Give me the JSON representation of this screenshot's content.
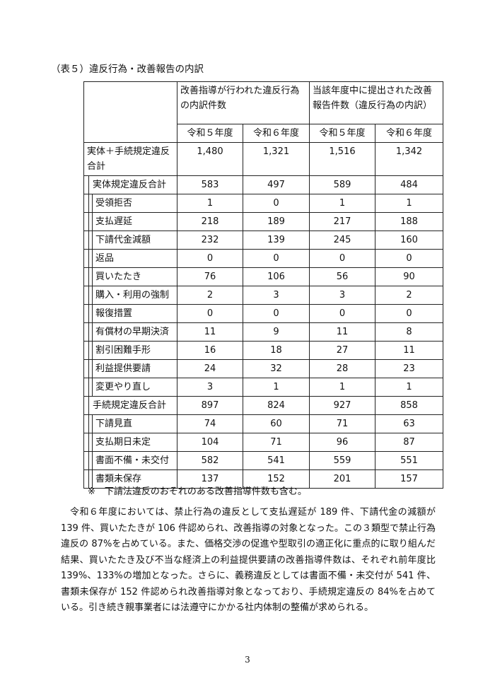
{
  "caption": "（表５）違反行為・改善報告の内訳",
  "table": {
    "group_headers": [
      "改善指導が行われた違反行為の内訳件数",
      "当該年度中に提出された改善報告件数（違反行為の内訳）"
    ],
    "year_headers": [
      "令和５年度",
      "令和６年度",
      "令和５年度",
      "令和６年度"
    ],
    "rows": [
      {
        "label": "実体＋手続規定違反合計",
        "level": 1,
        "values": [
          "1,480",
          "1,321",
          "1,516",
          "1,342"
        ]
      },
      {
        "label": "実体規定違反合計",
        "level": 2,
        "values": [
          "583",
          "497",
          "589",
          "484"
        ]
      },
      {
        "label": "受領拒否",
        "level": 3,
        "values": [
          "1",
          "0",
          "1",
          "1"
        ]
      },
      {
        "label": "支払遅延",
        "level": 3,
        "values": [
          "218",
          "189",
          "217",
          "188"
        ]
      },
      {
        "label": "下請代金減額",
        "level": 3,
        "values": [
          "232",
          "139",
          "245",
          "160"
        ]
      },
      {
        "label": "返品",
        "level": 3,
        "values": [
          "0",
          "0",
          "0",
          "0"
        ]
      },
      {
        "label": "買いたたき",
        "level": 3,
        "values": [
          "76",
          "106",
          "56",
          "90"
        ]
      },
      {
        "label": "購入・利用の強制",
        "level": 3,
        "values": [
          "2",
          "3",
          "3",
          "2"
        ]
      },
      {
        "label": "報復措置",
        "level": 3,
        "values": [
          "0",
          "0",
          "0",
          "0"
        ]
      },
      {
        "label": "有償材の早期決済",
        "level": 3,
        "values": [
          "11",
          "9",
          "11",
          "8"
        ]
      },
      {
        "label": "割引困難手形",
        "level": 3,
        "values": [
          "16",
          "18",
          "27",
          "11"
        ]
      },
      {
        "label": "利益提供要請",
        "level": 3,
        "values": [
          "24",
          "32",
          "28",
          "23"
        ]
      },
      {
        "label": "変更やり直し",
        "level": 3,
        "values": [
          "3",
          "1",
          "1",
          "1"
        ]
      },
      {
        "label": "手続規定違反合計",
        "level": 2,
        "values": [
          "897",
          "824",
          "927",
          "858"
        ]
      },
      {
        "label": "下請見直",
        "level": 3,
        "values": [
          "74",
          "60",
          "71",
          "63"
        ]
      },
      {
        "label": "支払期日未定",
        "level": 3,
        "values": [
          "104",
          "71",
          "96",
          "87"
        ]
      },
      {
        "label": "書面不備・未交付",
        "level": 3,
        "values": [
          "582",
          "541",
          "559",
          "551"
        ]
      },
      {
        "label": "書類未保存",
        "level": 3,
        "values": [
          "137",
          "152",
          "201",
          "157"
        ]
      }
    ]
  },
  "note": "※　下請法違反のおそれのある改善指導件数も含む。",
  "paragraph": "令和６年度においては、禁止行為の違反として支払遅延が 189 件、下請代金の減額が 139 件、買いたたきが 106 件認められ、改善指導の対象となった。この３類型で禁止行為違反の 87%を占めている。また、価格交渉の促進や型取引の適正化に重点的に取り組んだ結果、買いたたき及び不当な経済上の利益提供要請の改善指導件数は、それぞれ前年度比 139%、133%の増加となった。さらに、義務違反としては書面不備・未交付が 541 件、書類未保存が 152 件認められ改善指導対象となっており、手続規定違反の 84%を占めている。引き続き親事業者には法遵守にかかる社内体制の整備が求められる。",
  "page_number": "3"
}
